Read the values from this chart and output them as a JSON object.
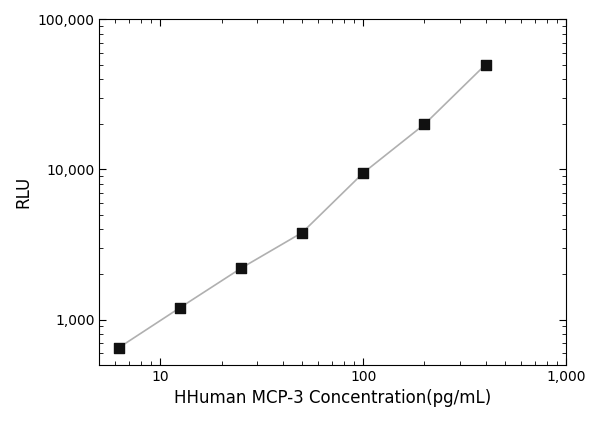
{
  "x_data": [
    6.25,
    12.5,
    25,
    50,
    100,
    200,
    400
  ],
  "y_data": [
    650,
    1200,
    2200,
    3800,
    9500,
    20000,
    50000
  ],
  "xlabel": "HHuman MCP-3 Concentration(pg/mL)",
  "ylabel": "RLU",
  "xlim": [
    5,
    1000
  ],
  "ylim": [
    500,
    100000
  ],
  "line_color": "#b0b0b0",
  "marker_color": "#111111",
  "marker_size": 7,
  "line_width": 1.2,
  "background_color": "#ffffff",
  "xlabel_fontsize": 12,
  "ylabel_fontsize": 12,
  "tick_labelsize": 10
}
